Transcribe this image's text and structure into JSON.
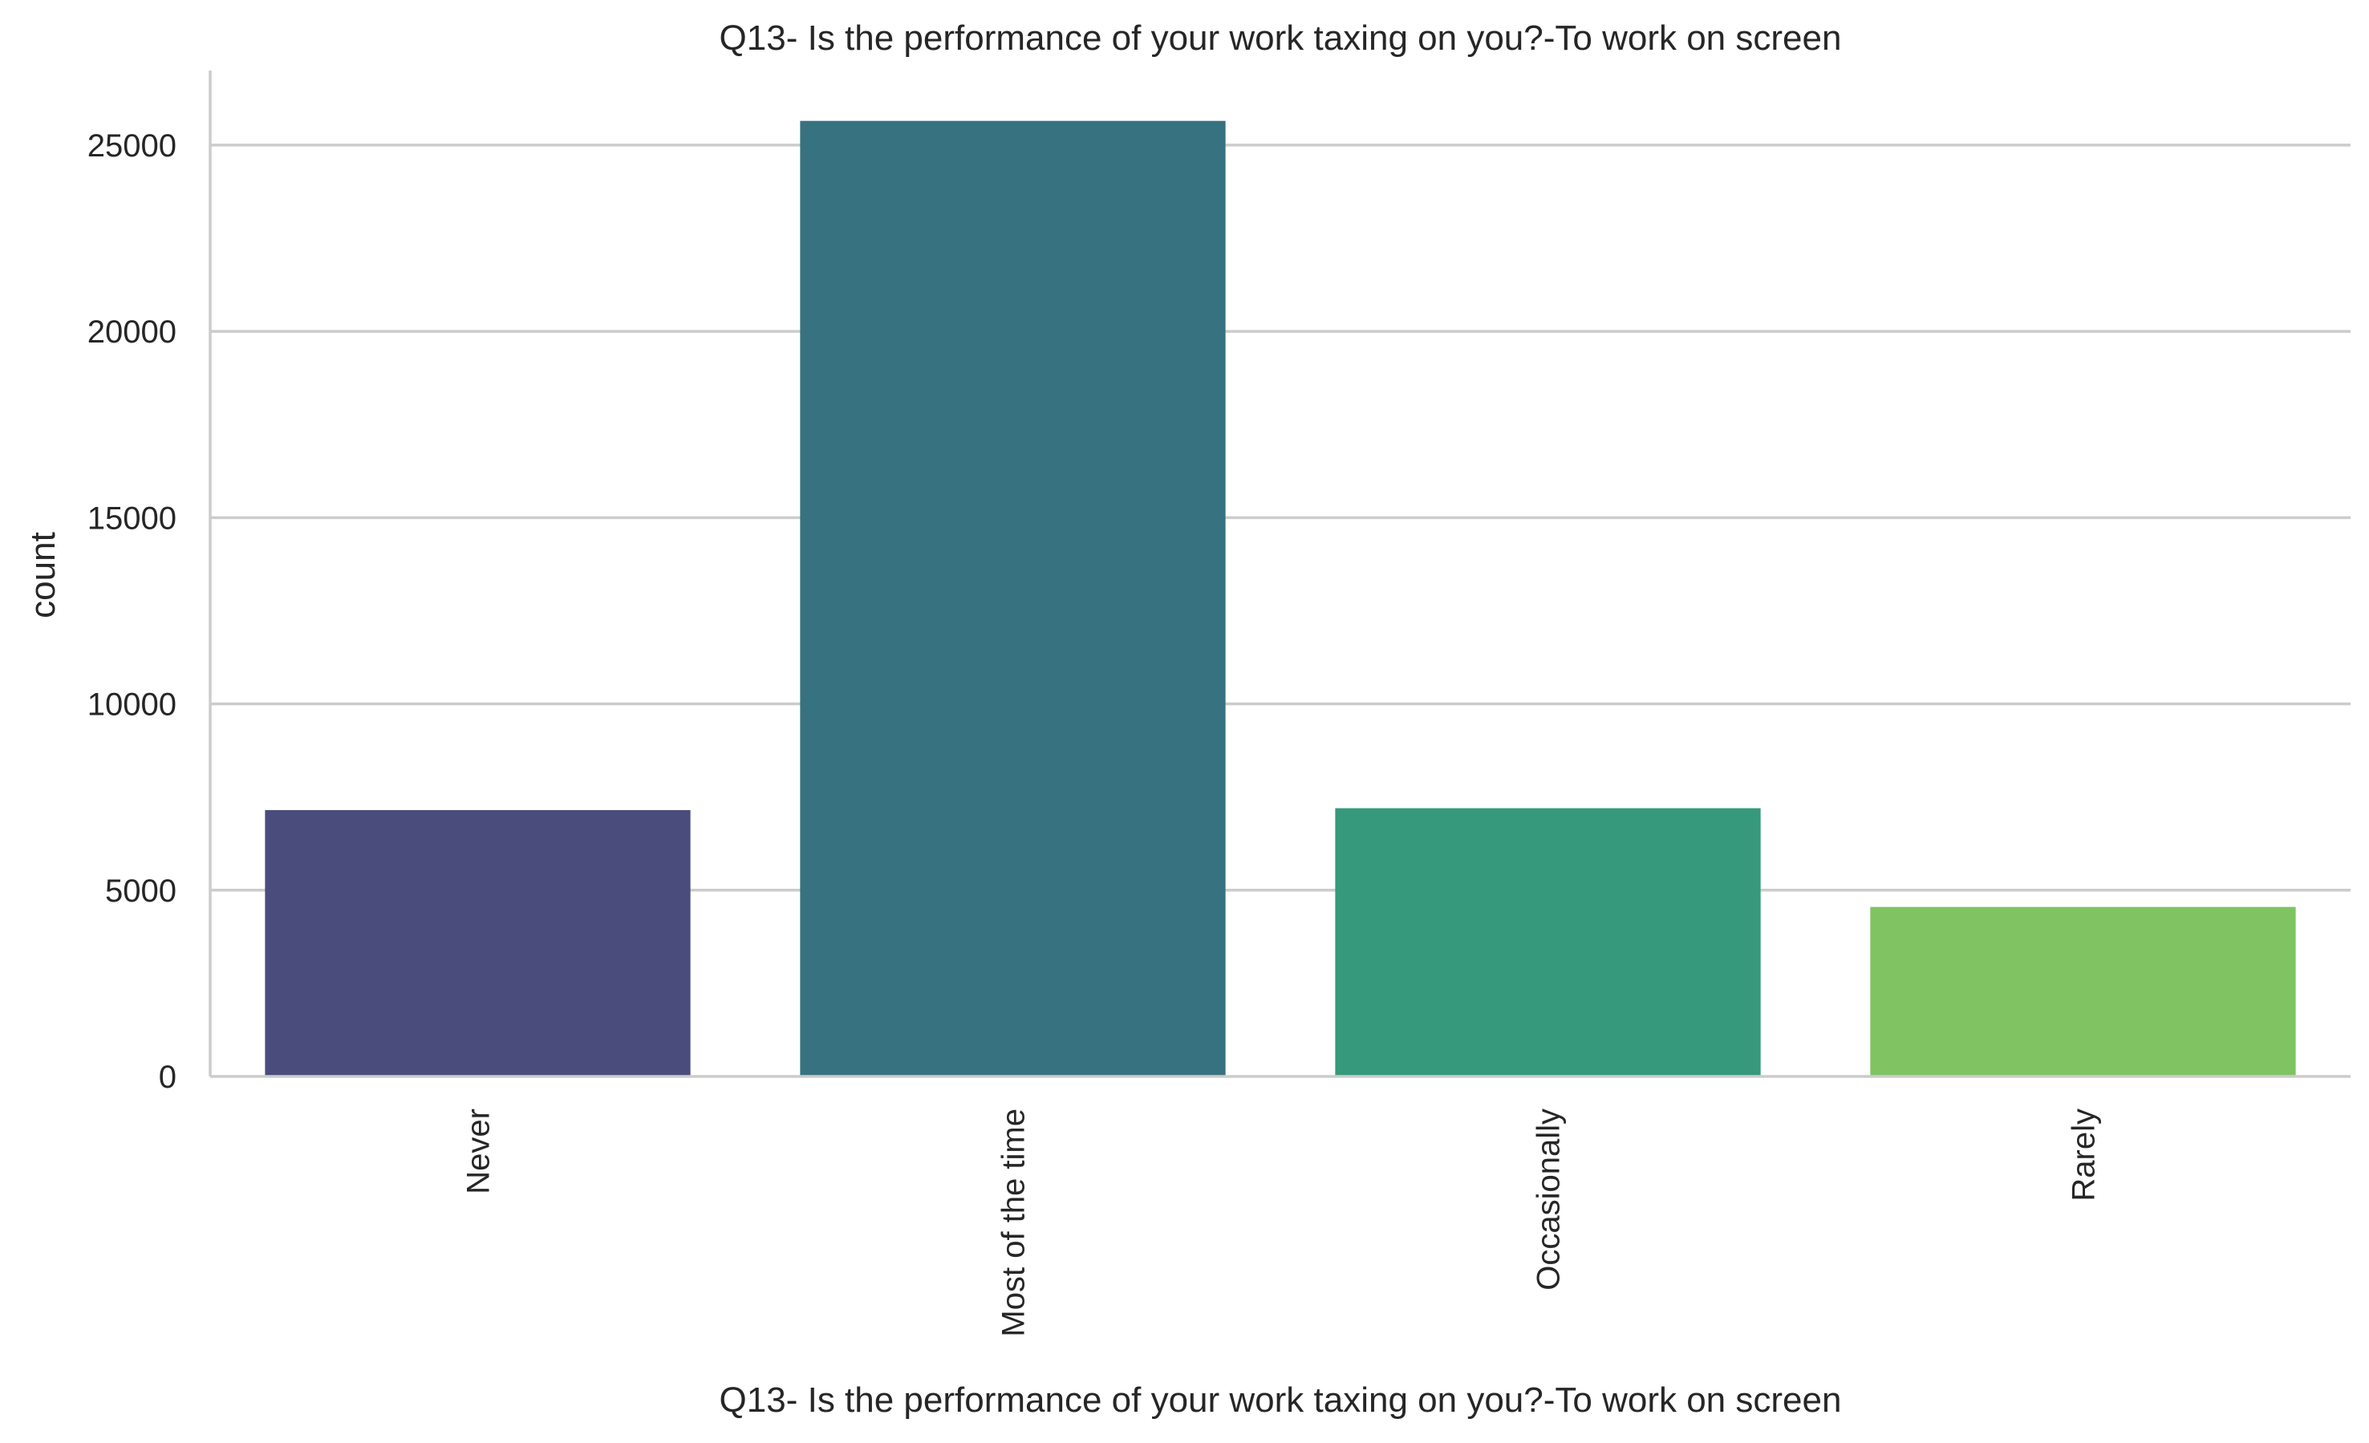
{
  "chart_data": {
    "type": "bar",
    "title": "Q13- Is the performance of your work taxing on you?-To work on screen",
    "xlabel": "Q13- Is the performance of your work taxing on you?-To work on screen",
    "ylabel": "count",
    "categories": [
      "Never",
      "Most of the time",
      "Occasionally",
      "Rarely"
    ],
    "values": [
      7150,
      25650,
      7200,
      4550
    ],
    "colors": [
      "#4a4c7c",
      "#377280",
      "#36997c",
      "#7fc362"
    ],
    "ylim": [
      0,
      27000
    ],
    "yticks": [
      0,
      5000,
      10000,
      15000,
      20000,
      25000
    ],
    "ytick_labels": [
      "0",
      "5000",
      "10000",
      "15000",
      "20000",
      "25000"
    ],
    "grid": "horizontal",
    "xtick_rotation": "vertical"
  }
}
